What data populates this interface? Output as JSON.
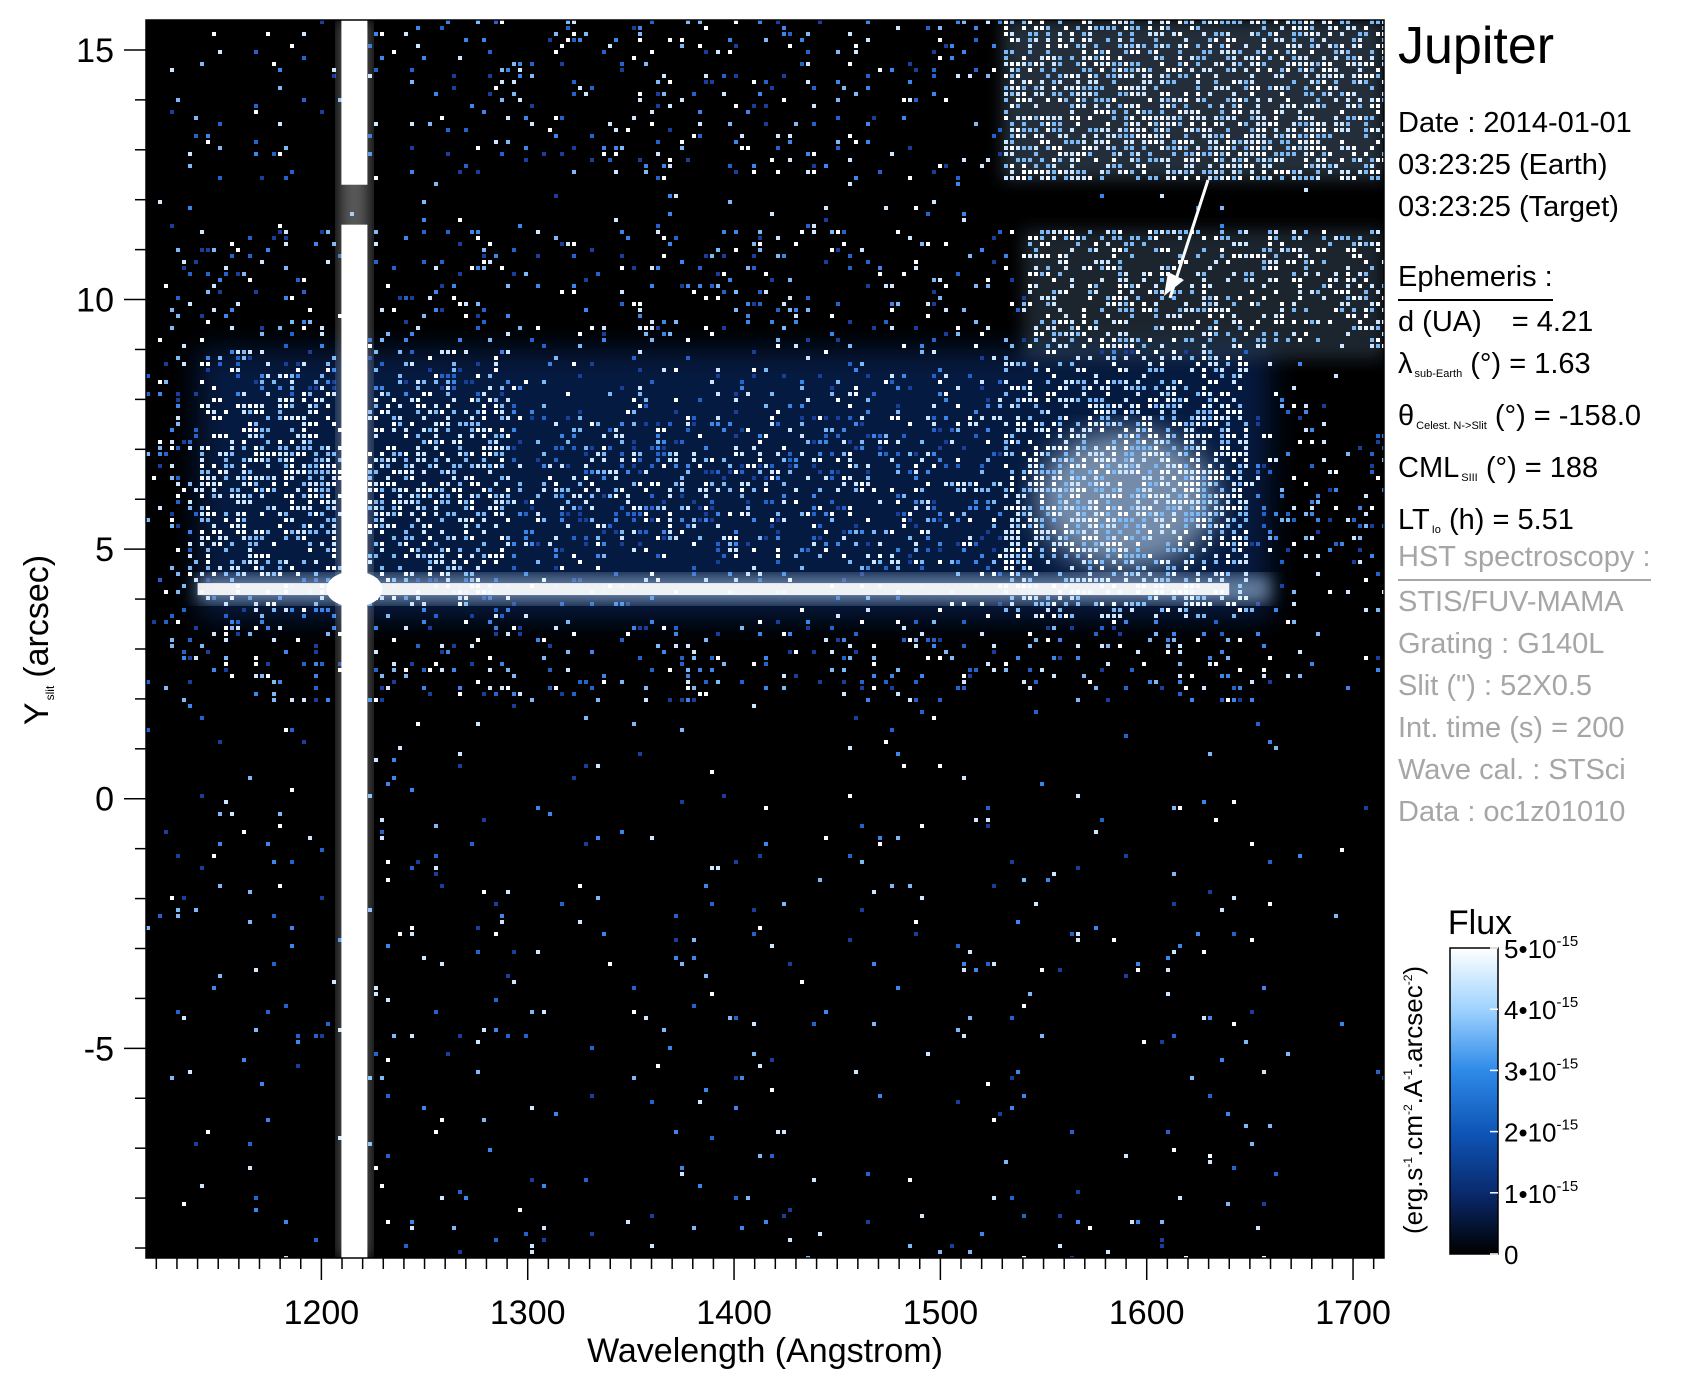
{
  "chart_data": {
    "type": "heatmap",
    "title": "Jupiter",
    "xlabel": "Wavelength (Angstrom)",
    "ylabel": "Y_slit (arcsec)",
    "ylabel_main": "Y",
    "ylabel_sub": "slit",
    "ylabel_unit": "(arcsec)",
    "xlim": [
      1115,
      1715
    ],
    "ylim": [
      -9.2,
      15.6
    ],
    "x_ticks": [
      1200,
      1300,
      1400,
      1500,
      1600,
      1700
    ],
    "y_ticks": [
      -5,
      0,
      5,
      10,
      15
    ],
    "x_tick_labels": [
      "1200",
      "1300",
      "1400",
      "1500",
      "1600",
      "1700"
    ],
    "y_tick_labels": [
      "-5",
      "0",
      "5",
      "10",
      "15"
    ],
    "features": {
      "lyman_alpha_line_wavelength": 1216,
      "lyman_alpha_gap_y": [
        11.5,
        12.3
      ],
      "horizontal_band_y": 4.2,
      "auroral_band_y": [
        3.6,
        9.0
      ],
      "upper_gap_y": [
        11.4,
        12.4
      ],
      "arrow_from": [
        1635,
        12.9
      ],
      "arrow_to": [
        1612,
        10.2
      ]
    },
    "colorbar": {
      "title": "Flux",
      "unit": "(erg.s-1.cm-2.A-1.arcsec-2)",
      "min": 0,
      "max": 5e-15,
      "tick_values": [
        0,
        1e-15,
        2e-15,
        3e-15,
        4e-15,
        5e-15
      ],
      "tick_labels": [
        "0",
        "1•10-15",
        "2•10-15",
        "3•10-15",
        "4•10-15",
        "5•10-15"
      ],
      "colors": [
        "#000000",
        "#0a2a6e",
        "#0e56b8",
        "#2f8ae8",
        "#9fd3ff",
        "#ffffff"
      ]
    }
  },
  "info": {
    "date_line": "Date : 2014-01-01",
    "earth_line": "03:23:25 (Earth)",
    "target_line": "03:23:25 (Target)",
    "ephemeris_header": "Ephemeris :",
    "d_label": "d (UA)",
    "d_value": "= 4.21",
    "lambda_symbol": "λ",
    "lambda_sub": "sub-Earth",
    "lambda_value": "(°)  = 1.63",
    "theta_symbol": "θ",
    "theta_sub": "Celest. N->Slit",
    "theta_value": "(°) = -158.0",
    "cml_main": "CML",
    "cml_sub": "SIII",
    "cml_value": "(°) = 188",
    "lt_main": "LT",
    "lt_sub": "Io",
    "lt_value": "(h) = 5.51",
    "hst_header": "HST spectroscopy :",
    "instrument": "STIS/FUV-MAMA",
    "grating": "Grating : G140L",
    "slit": "Slit (\") : 52X0.5",
    "int_time": "Int. time (s) = 200",
    "wave_cal": "Wave cal. : STSci",
    "data_id": "Data : oc1z01010"
  }
}
